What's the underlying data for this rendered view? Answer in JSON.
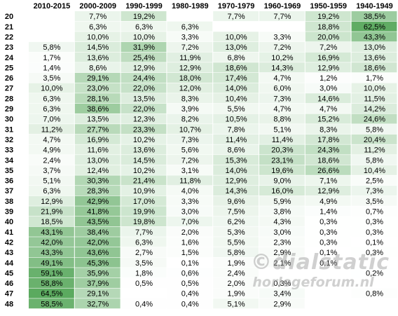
{
  "chart_data": {
    "type": "heatmap",
    "columns": [
      "2010-2015",
      "2000-2009",
      "1990-1999",
      "1980-1989",
      "1970-1979",
      "1960-1969",
      "1950-1959",
      "1940-1949"
    ],
    "rows": [
      "20",
      "21",
      "22",
      "23",
      "24",
      "25",
      "26",
      "27",
      "28",
      "29",
      "30",
      "31",
      "32",
      "33",
      "34",
      "35",
      "36",
      "37",
      "38",
      "39",
      "40",
      "41",
      "42",
      "43",
      "44",
      "45",
      "46",
      "47",
      "48"
    ],
    "values": [
      [
        "",
        "7,7%",
        "19,2%",
        "",
        "7,7%",
        "7,7%",
        "19,2%",
        "38,5%"
      ],
      [
        "",
        "6,3%",
        "6,3%",
        "6,3%",
        "",
        "",
        "18,8%",
        "62,5%"
      ],
      [
        "",
        "10,0%",
        "10,0%",
        "3,3%",
        "10,0%",
        "3,3%",
        "20,0%",
        "43,3%"
      ],
      [
        "5,8%",
        "14,5%",
        "31,9%",
        "7,2%",
        "13,0%",
        "7,2%",
        "7,2%",
        "13,0%"
      ],
      [
        "1,7%",
        "13,6%",
        "25,4%",
        "11,9%",
        "6,8%",
        "10,2%",
        "16,9%",
        "13,6%"
      ],
      [
        "1,4%",
        "8,6%",
        "12,9%",
        "12,9%",
        "18,6%",
        "14,3%",
        "12,9%",
        "18,6%"
      ],
      [
        "3,5%",
        "29,1%",
        "24,4%",
        "18,0%",
        "17,4%",
        "4,7%",
        "1,2%",
        "1,7%"
      ],
      [
        "10,0%",
        "23,0%",
        "22,0%",
        "12,0%",
        "14,0%",
        "6,0%",
        "3,0%",
        "10,0%"
      ],
      [
        "6,3%",
        "28,1%",
        "13,5%",
        "8,3%",
        "10,4%",
        "7,3%",
        "14,6%",
        "11,5%"
      ],
      [
        "6,3%",
        "38,6%",
        "22,0%",
        "3,9%",
        "5,5%",
        "4,7%",
        "4,7%",
        "14,2%"
      ],
      [
        "7,0%",
        "13,5%",
        "12,3%",
        "8,2%",
        "10,5%",
        "8,8%",
        "15,2%",
        "24,6%"
      ],
      [
        "11,2%",
        "27,7%",
        "23,3%",
        "10,7%",
        "7,8%",
        "5,1%",
        "8,3%",
        "5,8%"
      ],
      [
        "4,7%",
        "16,9%",
        "10,2%",
        "7,3%",
        "11,4%",
        "11,4%",
        "17,8%",
        "20,4%"
      ],
      [
        "4,9%",
        "11,6%",
        "13,6%",
        "5,6%",
        "8,6%",
        "20,3%",
        "24,3%",
        "11,2%"
      ],
      [
        "2,4%",
        "13,0%",
        "14,5%",
        "7,2%",
        "15,3%",
        "23,1%",
        "18,6%",
        "5,8%"
      ],
      [
        "3,7%",
        "12,4%",
        "10,2%",
        "3,1%",
        "14,0%",
        "19,6%",
        "26,6%",
        "10,4%"
      ],
      [
        "5,1%",
        "30,3%",
        "21,4%",
        "11,8%",
        "12,9%",
        "9,0%",
        "7,1%",
        "2,5%"
      ],
      [
        "6,3%",
        "28,3%",
        "10,9%",
        "4,0%",
        "14,3%",
        "16,0%",
        "12,9%",
        "7,3%"
      ],
      [
        "12,9%",
        "42,9%",
        "17,0%",
        "3,3%",
        "9,6%",
        "5,9%",
        "4,9%",
        "3,5%"
      ],
      [
        "21,9%",
        "41,8%",
        "19,9%",
        "3,0%",
        "7,5%",
        "3,8%",
        "1,4%",
        "0,7%"
      ],
      [
        "18,5%",
        "43,5%",
        "19,8%",
        "7,0%",
        "6,2%",
        "4,3%",
        "0,3%",
        "0,3%"
      ],
      [
        "43,1%",
        "38,4%",
        "7,7%",
        "2,0%",
        "5,3%",
        "3,0%",
        "0,3%",
        "0,3%"
      ],
      [
        "42,0%",
        "42,0%",
        "6,3%",
        "1,6%",
        "5,5%",
        "2,3%",
        "0,3%",
        "0,1%"
      ],
      [
        "43,3%",
        "43,6%",
        "2,7%",
        "1,5%",
        "5,8%",
        "2,9%",
        "0,1%",
        "0,3%"
      ],
      [
        "49,1%",
        "45,3%",
        "3,5%",
        "0,1%",
        "1,9%",
        "2,1%",
        "0,1%",
        ""
      ],
      [
        "59,1%",
        "35,9%",
        "1,8%",
        "0,6%",
        "2,4%",
        "",
        "",
        "0,2%"
      ],
      [
        "58,8%",
        "37,9%",
        "0,5%",
        "0,5%",
        "2,0%",
        "0,3%",
        "",
        ""
      ],
      [
        "64,5%",
        "29,1%",
        "",
        "0,4%",
        "1,9%",
        "3,4%",
        "",
        "0,8%"
      ],
      [
        "58,5%",
        "32,7%",
        "0,4%",
        "0,4%",
        "5,1%",
        "2,9%",
        "",
        ""
      ]
    ],
    "colors": {
      "low": "#ffffff",
      "high": "#5aa95e"
    },
    "vmax": 65
  },
  "watermark": {
    "line1": "©dialstatic",
    "line2": "horlogeforum.nl"
  }
}
